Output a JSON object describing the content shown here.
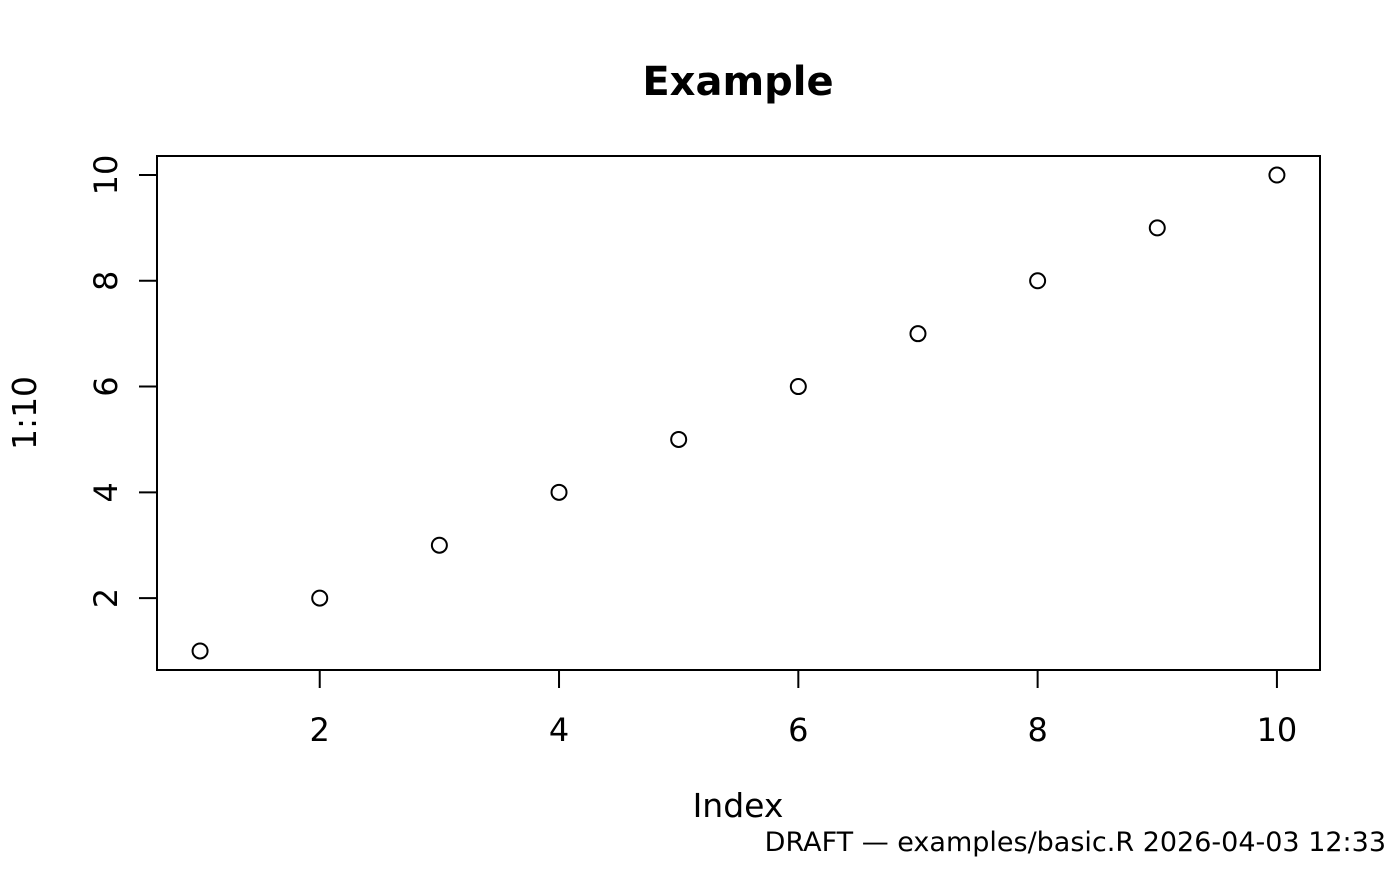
{
  "chart_data": {
    "type": "scatter",
    "title": "Example",
    "xlabel": "Index",
    "ylabel": "1:10",
    "x": [
      1,
      2,
      3,
      4,
      5,
      6,
      7,
      8,
      9,
      10
    ],
    "y": [
      1,
      2,
      3,
      4,
      5,
      6,
      7,
      8,
      9,
      10
    ],
    "x_ticks": [
      2,
      4,
      6,
      8,
      10
    ],
    "y_ticks": [
      2,
      4,
      6,
      8,
      10
    ],
    "xlim": [
      0.64,
      10.36
    ],
    "ylim": [
      0.64,
      10.36
    ],
    "grid": false,
    "legend": "none",
    "point_style": "open-circle",
    "colors": {
      "point": "#000000",
      "axis": "#000000",
      "footer_text": "#808080"
    }
  },
  "footer": {
    "note": "DRAFT — examples/basic.R 2026-04-03 12:33"
  }
}
